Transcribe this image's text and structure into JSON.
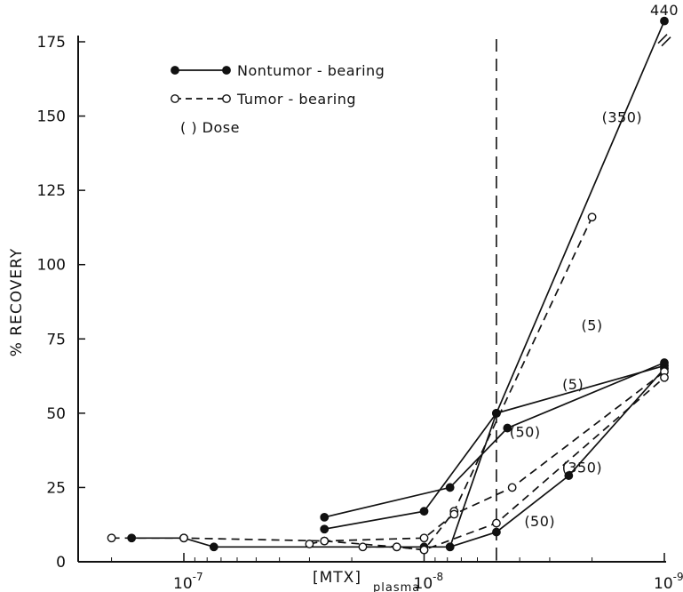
{
  "chart_data": {
    "type": "line",
    "ylabel": "% RECOVERY",
    "xlabel": "[MTX]",
    "xlabel_subscript": "plasma",
    "x_scale": "log (reversed)",
    "xlim": [
      2e-07,
      9e-10
    ],
    "ylim": [
      0,
      180
    ],
    "x_tick_labels": [
      {
        "base": "10",
        "exp": "-7",
        "value": 1e-07
      },
      {
        "base": "10",
        "exp": "-8",
        "value": 1e-08
      },
      {
        "base": "10",
        "exp": "-9",
        "value": 1e-09
      }
    ],
    "y_ticks": [
      0,
      25,
      50,
      75,
      100,
      125,
      150,
      175
    ],
    "grid": false,
    "legend_position": "top-left",
    "legend": [
      {
        "label": "Nontumor - bearing",
        "style": "solid",
        "marker": "filled"
      },
      {
        "label": "Tumor - bearing",
        "style": "dashed",
        "marker": "open"
      },
      {
        "label": "( )  Dose",
        "style": "none",
        "marker": "none"
      }
    ],
    "reference_line": {
      "x": 5e-09,
      "style": "dashed"
    },
    "series": [
      {
        "group": "Nontumor-bearing",
        "dose": "350",
        "style": "solid",
        "marker": "filled",
        "x": [
          1.65e-07,
          1e-07,
          7.5e-08,
          1e-08,
          7.8e-09,
          5e-09,
          1e-09
        ],
        "y": [
          8,
          8,
          5,
          5,
          5,
          50,
          182
        ]
      },
      {
        "group": "Nontumor-bearing",
        "dose": "5",
        "style": "solid",
        "marker": "filled",
        "x": [
          2.6e-08,
          7.8e-09,
          4.5e-09,
          1e-09
        ],
        "y": [
          15,
          25,
          45,
          67
        ]
      },
      {
        "group": "Nontumor-bearing",
        "dose": "50",
        "style": "solid",
        "marker": "filled",
        "x": [
          2.6e-08,
          1e-08,
          5e-09,
          1e-09
        ],
        "y": [
          11,
          17,
          50,
          66
        ]
      },
      {
        "group": "Nontumor-bearing",
        "dose": "50",
        "style": "solid",
        "marker": "filled",
        "x": [
          7.8e-09,
          5e-09,
          2.5e-09,
          1e-09
        ],
        "y": [
          5,
          10,
          29,
          65
        ]
      },
      {
        "group": "Tumor-bearing",
        "dose": "5",
        "style": "dashed",
        "marker": "open",
        "x": [
          2e-07,
          1e-07,
          2.6e-08,
          1.3e-08,
          1e-08,
          7.5e-09,
          2e-09
        ],
        "y": [
          8,
          8,
          7,
          5,
          4,
          17,
          116
        ]
      },
      {
        "group": "Tumor-bearing",
        "dose": "50",
        "style": "dashed",
        "marker": "open",
        "x": [
          3e-08,
          2.6e-08,
          1e-08,
          7.5e-09,
          4.3e-09,
          1e-09
        ],
        "y": [
          6,
          7,
          8,
          16,
          25,
          64
        ]
      },
      {
        "group": "Tumor-bearing",
        "dose": "350",
        "style": "dashed",
        "marker": "open",
        "x": [
          1.8e-08,
          1.3e-08,
          1e-08,
          5e-09,
          1e-09
        ],
        "y": [
          5,
          5,
          4,
          13,
          62
        ]
      }
    ],
    "annotations": [
      {
        "text": "440",
        "x": 1e-09,
        "y": 184
      },
      {
        "text": "(350)",
        "x": 1.5e-09,
        "y": 148
      },
      {
        "text": "(5)",
        "x": 2e-09,
        "y": 78
      },
      {
        "text": "(5)",
        "x": 2.4e-09,
        "y": 58
      },
      {
        "text": "(50)",
        "x": 3.8e-09,
        "y": 42
      },
      {
        "text": "(350)",
        "x": 2.2e-09,
        "y": 30
      },
      {
        "text": "(50)",
        "x": 3.3e-09,
        "y": 12
      }
    ],
    "break_mark": {
      "x": 1e-09,
      "y": 176
    }
  }
}
